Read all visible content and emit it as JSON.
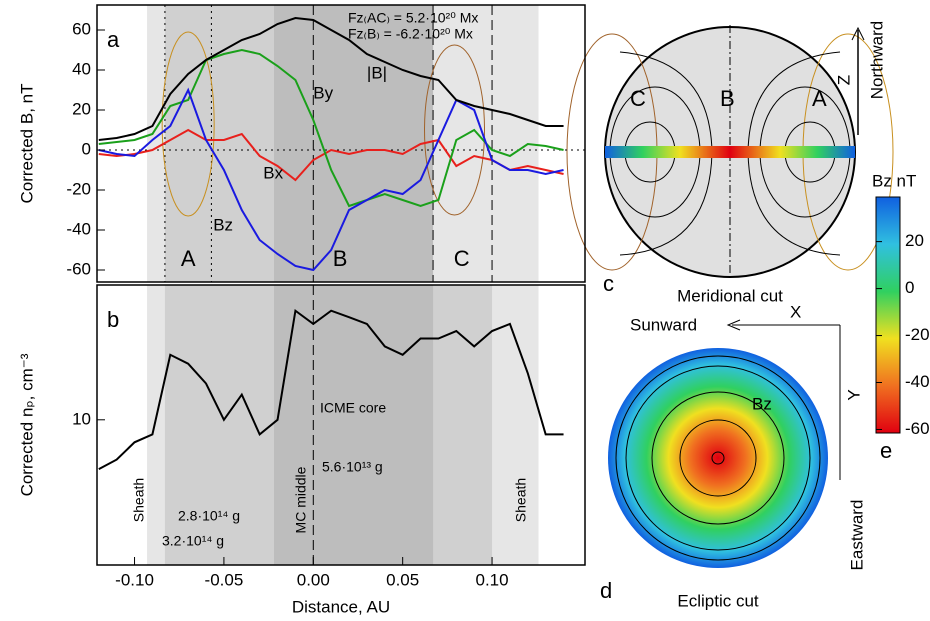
{
  "chart_data": [
    {
      "type": "line",
      "panel_label": "a",
      "ylabel": "Corrected B, nT",
      "x": [
        -0.12,
        -0.11,
        -0.1,
        -0.09,
        -0.08,
        -0.07,
        -0.06,
        -0.05,
        -0.04,
        -0.03,
        -0.02,
        -0.01,
        0,
        0.01,
        0.02,
        0.03,
        0.04,
        0.05,
        0.06,
        0.07,
        0.08,
        0.09,
        0.1,
        0.11,
        0.12,
        0.13,
        0.14
      ],
      "series": [
        {
          "name": "Bx",
          "color": "#e8201c",
          "values": [
            -2,
            -3,
            -2,
            0,
            5,
            10,
            5,
            5,
            8,
            -3,
            -8,
            -15,
            -5,
            0,
            -2,
            0,
            0,
            -2,
            3,
            5,
            -8,
            -3,
            -5,
            -10,
            -8,
            -10,
            -12
          ]
        },
        {
          "name": "By",
          "color": "#1aa01a",
          "values": [
            3,
            4,
            5,
            8,
            22,
            25,
            45,
            48,
            50,
            48,
            42,
            35,
            15,
            -10,
            -28,
            -25,
            -22,
            -25,
            -28,
            -25,
            5,
            10,
            0,
            -3,
            3,
            2,
            0
          ]
        },
        {
          "name": "Bz",
          "color": "#1a1ae0",
          "values": [
            0,
            -2,
            -3,
            5,
            12,
            30,
            5,
            -10,
            -30,
            -45,
            -52,
            -58,
            -60,
            -50,
            -30,
            -25,
            -20,
            -22,
            -15,
            5,
            25,
            20,
            -5,
            -10,
            -10,
            -12,
            -10
          ]
        },
        {
          "name": "|B|",
          "color": "#000000",
          "values": [
            5,
            6,
            8,
            12,
            28,
            38,
            45,
            50,
            55,
            58,
            63,
            66,
            65,
            60,
            55,
            48,
            44,
            40,
            37,
            35,
            25,
            22,
            20,
            18,
            15,
            12,
            12
          ]
        }
      ],
      "xlim": [
        -0.121,
        0.152
      ],
      "ylim": [
        -66,
        72.5
      ],
      "yticks": [
        -60,
        -40,
        -20,
        0,
        20,
        40,
        60
      ],
      "regions": [
        {
          "x": [
            -0.093,
            0.126
          ],
          "color": "#e6e6e6"
        },
        {
          "x": [
            -0.083,
            0.067
          ],
          "color": "#d0d0d0"
        },
        {
          "x": [
            -0.022,
            0.067
          ],
          "color": "#bdbdbd"
        }
      ],
      "region_labels": [
        "A",
        "B",
        "C"
      ],
      "annotations": [
        "Fz₍AC₎ =  5.2·10²⁰ Mx",
        "Fz₍B₎ = -6.2·10²⁰ Mx"
      ]
    },
    {
      "type": "line",
      "panel_label": "b",
      "ylabel": "Corrected nₚ, cm⁻³",
      "xlabel": "Distance, AU",
      "log": true,
      "x": [
        -0.12,
        -0.11,
        -0.1,
        -0.09,
        -0.08,
        -0.07,
        -0.06,
        -0.05,
        -0.04,
        -0.03,
        -0.02,
        -0.01,
        0,
        0.01,
        0.02,
        0.03,
        0.04,
        0.05,
        0.06,
        0.07,
        0.08,
        0.09,
        0.1,
        0.11,
        0.12,
        0.13,
        0.14
      ],
      "series": [
        {
          "name": "nP",
          "color": "#000000",
          "values": [
            7,
            7.5,
            8.5,
            9,
            16,
            15,
            13,
            10,
            12,
            9,
            10,
            22,
            20,
            22,
            21,
            20,
            17,
            16,
            18,
            18,
            19,
            17,
            19,
            20,
            14,
            9,
            9
          ]
        }
      ],
      "xlim": [
        -0.121,
        0.152
      ],
      "ylim": [
        3.5,
        26.5
      ],
      "yticks": [
        10
      ],
      "xticks": [
        {
          "value": -0.1,
          "label": "-0.10"
        },
        {
          "value": -0.05,
          "label": "-0.05"
        },
        {
          "value": 0,
          "label": "0.00"
        },
        {
          "value": 0.05,
          "label": "0.05"
        },
        {
          "value": 0.1,
          "label": "0.10"
        }
      ],
      "regions": [
        {
          "x": [
            -0.093,
            0.126
          ],
          "color": "#e6e6e6"
        },
        {
          "x": [
            -0.083,
            0.1
          ],
          "color": "#d0d0d0"
        },
        {
          "x": [
            -0.022,
            0.067
          ],
          "color": "#bdbdbd"
        }
      ],
      "annotations": [
        "Sheath",
        "2.8·10¹⁴ g",
        "3.2·10¹⁴ g",
        "MC middle",
        "ICME core",
        "5.6·10¹³ g",
        "Sheath"
      ]
    },
    {
      "type": "colorbar",
      "title": "Bz nT",
      "panel_label": "e",
      "ylim": [
        -61.5,
        39
      ],
      "yticks": [
        20,
        0,
        -20,
        -40,
        -60
      ]
    }
  ],
  "diagrams": {
    "meridional": {
      "panel_label": "c",
      "caption": "Meridional cut",
      "labels": [
        "C",
        "B",
        "A"
      ],
      "axis": "Z",
      "direction": "Northward"
    },
    "ecliptic": {
      "panel_label": "d",
      "caption": "Ecliptic cut",
      "field": "Bz",
      "x_axis": "X",
      "x_direction": "Sunward",
      "y_axis": "Y",
      "y_direction": "Eastward"
    }
  }
}
